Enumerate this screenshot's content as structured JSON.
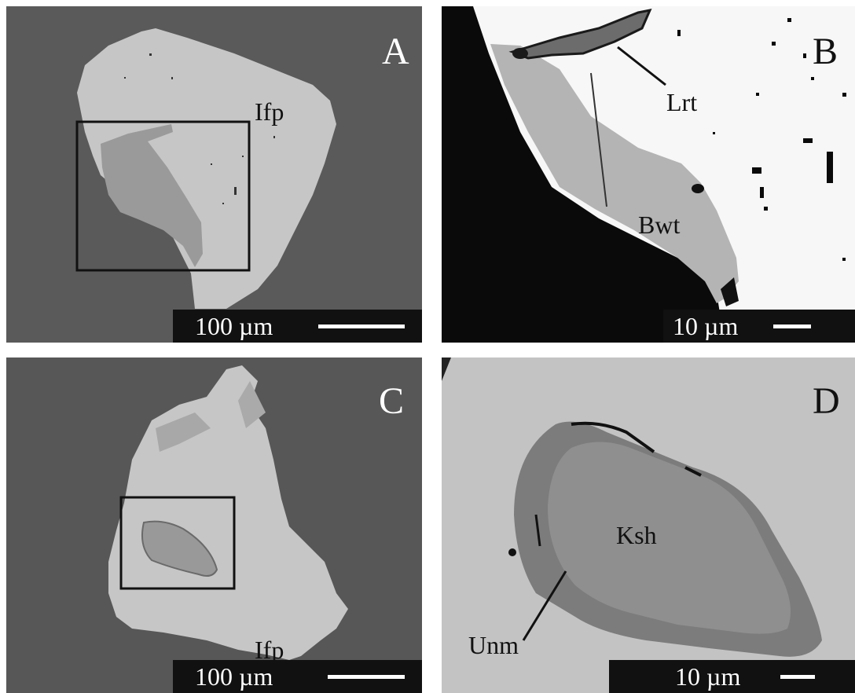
{
  "panels": {
    "a": {
      "letter": "A",
      "label": "Ifp",
      "scale": "100 µm"
    },
    "b": {
      "letter": "B",
      "label1": "Lrt",
      "label2": "Bwt",
      "scale": "10 µm"
    },
    "c": {
      "letter": "C",
      "label": "Ifp",
      "scale": "100 µm"
    },
    "d": {
      "letter": "D",
      "label1": "Ksh",
      "label2": "Unm",
      "scale": "10 µm"
    }
  }
}
